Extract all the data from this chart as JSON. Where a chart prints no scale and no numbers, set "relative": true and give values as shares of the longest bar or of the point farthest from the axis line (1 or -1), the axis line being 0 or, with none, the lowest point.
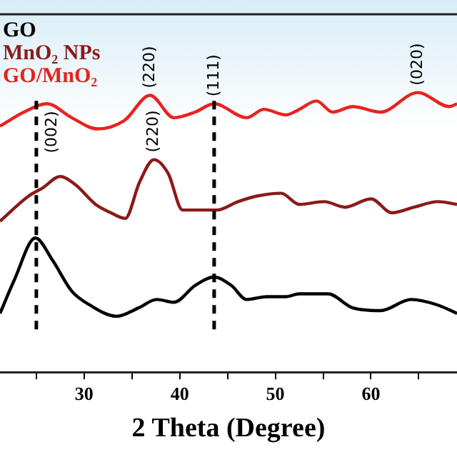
{
  "chart_data": {
    "type": "line",
    "relative": true,
    "xlabel": "2 Theta (Degree)",
    "xlim": [
      21.2,
      69
    ],
    "xticks": [
      {
        "value": 25,
        "label": null
      },
      30,
      {
        "value": 35,
        "label": null
      },
      40,
      {
        "value": 45,
        "label": null
      },
      50,
      {
        "value": 55,
        "label": null
      },
      60,
      {
        "value": 65,
        "label": null
      }
    ],
    "grid": false,
    "legend": "top left",
    "marker": "none",
    "line_style": "solid",
    "series": [
      {
        "name": "GO",
        "color": "#000000",
        "x": [
          21.2,
          22.7,
          24.9,
          26.7,
          28.7,
          30.6,
          33.4,
          35.7,
          37.6,
          39.4,
          41.6,
          43.6,
          45.4,
          47.0,
          49.1,
          51.1,
          52.5,
          55.5,
          58.1,
          61.0,
          64.2,
          67.0,
          69.0
        ],
        "values": [
          0.21,
          0.33,
          0.48,
          0.4,
          0.29,
          0.24,
          0.2,
          0.23,
          0.26,
          0.25,
          0.31,
          0.34,
          0.31,
          0.26,
          0.27,
          0.27,
          0.28,
          0.28,
          0.23,
          0.22,
          0.26,
          0.24,
          0.21
        ]
      },
      {
        "name": "MnO₂ NPs",
        "color": "#8b1a1a",
        "x": [
          21.2,
          24.2,
          25.7,
          27.5,
          29.1,
          31.2,
          32.8,
          34.3,
          35.8,
          37.3,
          38.8,
          40.3,
          42.1,
          43.9,
          46.1,
          48.1,
          50.6,
          52.5,
          55.1,
          57.3,
          60.0,
          62.2,
          64.5,
          67.0,
          69.0
        ],
        "values": [
          0.54,
          0.63,
          0.66,
          0.7,
          0.67,
          0.6,
          0.57,
          0.55,
          0.68,
          0.76,
          0.71,
          0.58,
          0.58,
          0.58,
          0.61,
          0.63,
          0.64,
          0.6,
          0.61,
          0.59,
          0.62,
          0.57,
          0.59,
          0.61,
          0.6
        ]
      },
      {
        "name": "GO/MnO₂",
        "color": "#e8221e",
        "x": [
          21.2,
          23.7,
          26.1,
          28.7,
          31.4,
          34.2,
          36.9,
          39.4,
          41.6,
          43.6,
          47.0,
          48.8,
          51.1,
          52.5,
          54.3,
          56.0,
          58.1,
          61.0,
          64.9,
          68.2,
          69.0
        ],
        "values": [
          0.88,
          0.93,
          0.96,
          0.91,
          0.87,
          0.9,
          0.99,
          0.91,
          0.93,
          0.96,
          0.91,
          0.94,
          0.92,
          0.94,
          0.97,
          0.93,
          0.95,
          0.93,
          1.0,
          0.95,
          0.96
        ]
      }
    ],
    "ref_lines": [
      {
        "axis": "x",
        "value": 25,
        "line_style": "dashed",
        "color": "#000000"
      },
      {
        "axis": "x",
        "value": 43.6,
        "line_style": "dashed",
        "color": "#000000"
      }
    ],
    "annotations": [
      {
        "text": "(002)",
        "x": 26.1,
        "y": 0.96
      },
      {
        "text": "(220)",
        "x": 36.9,
        "y": 0.99
      },
      {
        "text": "(220)",
        "x": 37.3,
        "y": 0.76
      },
      {
        "text": "(111)",
        "x": 43.6,
        "y": 0.96
      },
      {
        "text": "(020)",
        "x": 64.9,
        "y": 1.0
      }
    ]
  }
}
